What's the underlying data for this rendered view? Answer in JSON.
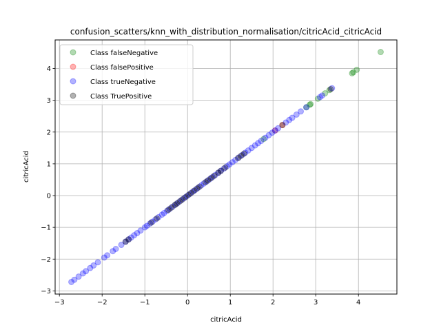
{
  "chart_data": {
    "type": "scatter",
    "title": "confusion_scatters/knn_with_distribution_normalisation/citricAcid_citricAcid",
    "xlabel": "citricAcid",
    "ylabel": "citricAcid",
    "xlim": [
      -3.1,
      4.9
    ],
    "ylim": [
      -3.1,
      4.9
    ],
    "xticks": [
      -3,
      -2,
      -1,
      0,
      1,
      2,
      3,
      4
    ],
    "yticks": [
      -3,
      -2,
      -1,
      0,
      1,
      2,
      3,
      4
    ],
    "xtick_labels": [
      "−3",
      "−2",
      "−1",
      "0",
      "1",
      "2",
      "3",
      "4"
    ],
    "ytick_labels": [
      "−3",
      "−2",
      "−1",
      "0",
      "1",
      "2",
      "3",
      "4"
    ],
    "grid": true,
    "legend_position": "upper-left",
    "series": [
      {
        "name": "Class falseNegative",
        "color": "#008000",
        "alpha": 0.3,
        "x": [
          4.52,
          3.96,
          3.88,
          3.85,
          3.32,
          3.22,
          3.05,
          2.88,
          2.86,
          2.78,
          1.78
        ],
        "y": [
          4.52,
          3.96,
          3.88,
          3.85,
          3.32,
          3.22,
          3.05,
          2.88,
          2.86,
          2.78,
          1.78
        ]
      },
      {
        "name": "Class falsePositive",
        "color": "#ff0000",
        "alpha": 0.3,
        "x": [
          2.22,
          2.05
        ],
        "y": [
          2.22,
          2.05
        ]
      },
      {
        "name": "Class trueNegative",
        "color": "#0000ff",
        "alpha": 0.3,
        "x": [
          -2.72,
          -2.65,
          -2.55,
          -2.45,
          -2.38,
          -2.28,
          -2.2,
          -2.1,
          -1.95,
          -1.88,
          -1.75,
          -1.68,
          -1.55,
          -1.45,
          -1.38,
          -1.32,
          -1.25,
          -1.18,
          -1.1,
          -1.0,
          -0.95,
          -0.88,
          -0.82,
          -0.75,
          -0.68,
          -0.6,
          -0.55,
          -0.48,
          -0.42,
          -0.35,
          -0.28,
          -0.22,
          -0.15,
          -0.08,
          -0.02,
          0.05,
          0.12,
          0.18,
          0.25,
          0.32,
          0.38,
          0.45,
          0.52,
          0.58,
          0.65,
          0.72,
          0.78,
          0.85,
          0.92,
          0.98,
          1.05,
          1.12,
          1.2,
          1.28,
          1.35,
          1.42,
          1.5,
          1.58,
          1.65,
          1.72,
          1.82,
          1.9,
          1.98,
          2.05,
          2.12,
          2.3,
          2.38,
          2.45,
          2.55,
          2.65,
          2.78,
          3.1,
          3.15,
          3.38
        ],
        "y": [
          -2.72,
          -2.65,
          -2.55,
          -2.45,
          -2.38,
          -2.28,
          -2.2,
          -2.1,
          -1.95,
          -1.88,
          -1.75,
          -1.68,
          -1.55,
          -1.45,
          -1.38,
          -1.32,
          -1.25,
          -1.18,
          -1.1,
          -1.0,
          -0.95,
          -0.88,
          -0.82,
          -0.75,
          -0.68,
          -0.6,
          -0.55,
          -0.48,
          -0.42,
          -0.35,
          -0.28,
          -0.22,
          -0.15,
          -0.08,
          -0.02,
          0.05,
          0.12,
          0.18,
          0.25,
          0.32,
          0.38,
          0.45,
          0.52,
          0.58,
          0.65,
          0.72,
          0.78,
          0.85,
          0.92,
          0.98,
          1.05,
          1.12,
          1.2,
          1.28,
          1.35,
          1.42,
          1.5,
          1.58,
          1.65,
          1.72,
          1.82,
          1.9,
          1.98,
          2.05,
          2.12,
          2.3,
          2.38,
          2.45,
          2.55,
          2.65,
          2.78,
          3.1,
          3.15,
          3.38
        ]
      },
      {
        "name": "Class TruePositive",
        "color": "#000000",
        "alpha": 0.3,
        "x": [
          -1.45,
          -1.38,
          -0.85,
          -0.72,
          -0.45,
          -0.38,
          -0.3,
          -0.25,
          -0.18,
          -0.12,
          -0.05,
          0.02,
          0.08,
          0.15,
          0.22,
          0.28,
          0.42,
          0.48,
          0.55,
          0.62,
          0.72,
          0.78,
          0.88,
          1.18,
          1.25,
          1.32,
          2.22,
          3.35
        ],
        "y": [
          -1.45,
          -1.38,
          -0.85,
          -0.72,
          -0.45,
          -0.38,
          -0.3,
          -0.25,
          -0.18,
          -0.12,
          -0.05,
          0.02,
          0.08,
          0.15,
          0.22,
          0.28,
          0.42,
          0.48,
          0.55,
          0.62,
          0.72,
          0.78,
          0.88,
          1.18,
          1.25,
          1.32,
          2.22,
          3.35
        ]
      }
    ]
  }
}
